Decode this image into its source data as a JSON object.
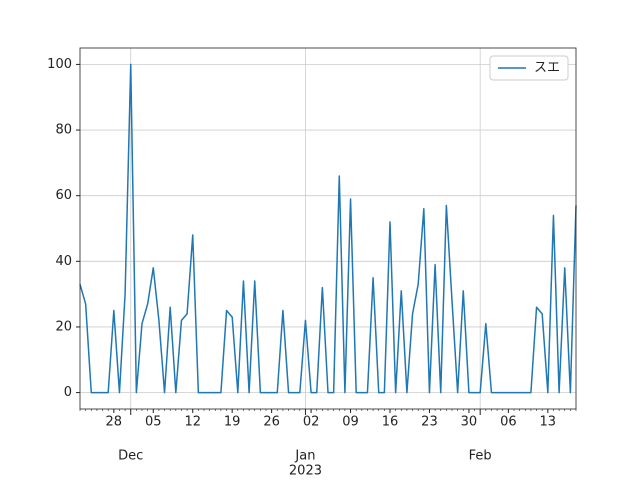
{
  "chart_data": {
    "type": "line",
    "x": [
      "2022-11-22",
      "2022-11-23",
      "2022-11-24",
      "2022-11-25",
      "2022-11-26",
      "2022-11-27",
      "2022-11-28",
      "2022-11-29",
      "2022-11-30",
      "2022-12-01",
      "2022-12-02",
      "2022-12-03",
      "2022-12-04",
      "2022-12-05",
      "2022-12-06",
      "2022-12-07",
      "2022-12-08",
      "2022-12-09",
      "2022-12-10",
      "2022-12-11",
      "2022-12-12",
      "2022-12-13",
      "2022-12-14",
      "2022-12-15",
      "2022-12-16",
      "2022-12-17",
      "2022-12-18",
      "2022-12-19",
      "2022-12-20",
      "2022-12-21",
      "2022-12-22",
      "2022-12-23",
      "2022-12-24",
      "2022-12-25",
      "2022-12-26",
      "2022-12-27",
      "2022-12-28",
      "2022-12-29",
      "2022-12-30",
      "2022-12-31",
      "2023-01-01",
      "2023-01-02",
      "2023-01-03",
      "2023-01-04",
      "2023-01-05",
      "2023-01-06",
      "2023-01-07",
      "2023-01-08",
      "2023-01-09",
      "2023-01-10",
      "2023-01-11",
      "2023-01-12",
      "2023-01-13",
      "2023-01-14",
      "2023-01-15",
      "2023-01-16",
      "2023-01-17",
      "2023-01-18",
      "2023-01-19",
      "2023-01-20",
      "2023-01-21",
      "2023-01-22",
      "2023-01-23",
      "2023-01-24",
      "2023-01-25",
      "2023-01-26",
      "2023-01-27",
      "2023-01-28",
      "2023-01-29",
      "2023-01-30",
      "2023-01-31",
      "2023-02-01",
      "2023-02-02",
      "2023-02-03",
      "2023-02-04",
      "2023-02-05",
      "2023-02-06",
      "2023-02-07",
      "2023-02-08",
      "2023-02-09",
      "2023-02-10",
      "2023-02-11",
      "2023-02-12",
      "2023-02-13",
      "2023-02-14",
      "2023-02-15",
      "2023-02-16",
      "2023-02-17",
      "2023-02-18"
    ],
    "series": [
      {
        "name": "スエ",
        "color": "#1f77b4",
        "values": [
          33,
          27,
          0,
          0,
          0,
          0,
          25,
          0,
          30,
          100,
          0,
          21,
          27,
          38,
          22,
          0,
          26,
          0,
          22,
          24,
          48,
          0,
          0,
          0,
          0,
          0,
          25,
          23,
          0,
          34,
          0,
          34,
          0,
          0,
          0,
          0,
          25,
          0,
          0,
          0,
          22,
          0,
          0,
          32,
          0,
          0,
          66,
          0,
          59,
          0,
          0,
          0,
          35,
          0,
          0,
          52,
          0,
          31,
          0,
          24,
          33,
          56,
          0,
          39,
          0,
          57,
          28,
          0,
          31,
          0,
          0,
          0,
          21,
          0,
          0,
          0,
          0,
          0,
          0,
          0,
          0,
          26,
          24,
          0,
          54,
          0,
          38,
          0,
          57
        ]
      }
    ],
    "xlim": [
      "2022-11-22",
      "2023-02-18"
    ],
    "xticks": [
      {
        "value": "2022-11-28",
        "label": "28"
      },
      {
        "value": "2022-12-05",
        "label": "05"
      },
      {
        "value": "2022-12-12",
        "label": "12"
      },
      {
        "value": "2022-12-19",
        "label": "19"
      },
      {
        "value": "2022-12-26",
        "label": "26"
      },
      {
        "value": "2023-01-02",
        "label": "02"
      },
      {
        "value": "2023-01-09",
        "label": "09"
      },
      {
        "value": "2023-01-16",
        "label": "16"
      },
      {
        "value": "2023-01-23",
        "label": "23"
      },
      {
        "value": "2023-01-30",
        "label": "30"
      },
      {
        "value": "2023-02-06",
        "label": "06"
      },
      {
        "value": "2023-02-13",
        "label": "13"
      }
    ],
    "xticks_major": [
      {
        "value": "2022-12-01",
        "label": "Dec"
      },
      {
        "value": "2023-01-01",
        "label": "Jan"
      },
      {
        "value": "2023-02-01",
        "label": "Feb"
      }
    ],
    "year_label": "2023",
    "ylim": [
      -5,
      105
    ],
    "yticks": [
      0,
      20,
      40,
      60,
      80,
      100
    ],
    "grid": true,
    "legend": "upper right"
  }
}
